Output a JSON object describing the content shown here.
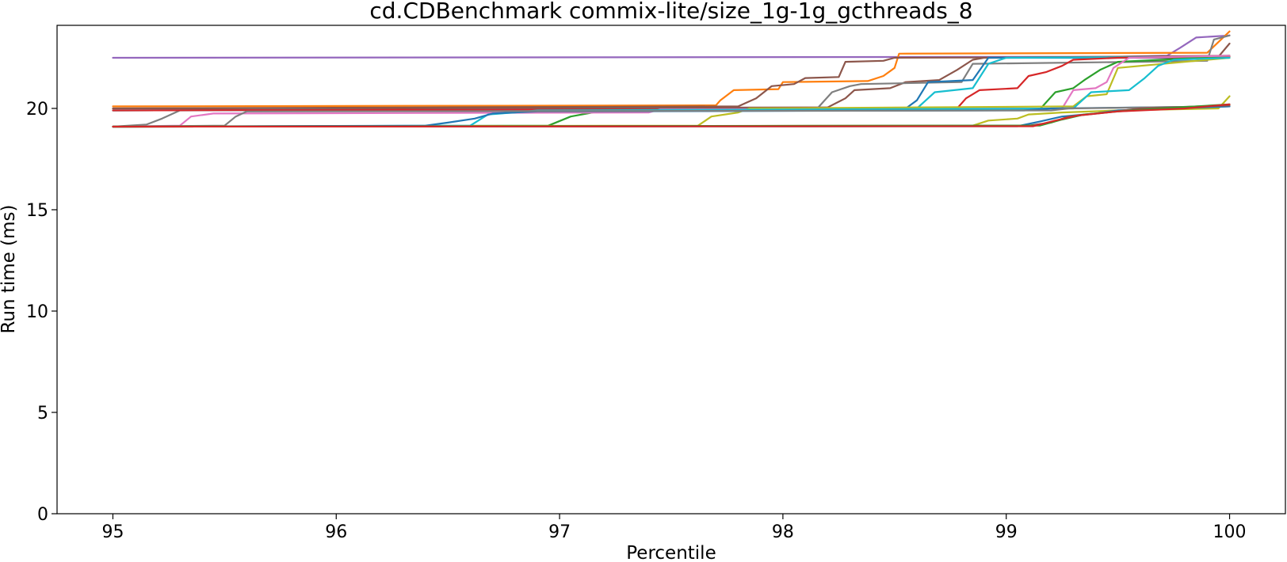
{
  "chart_data": {
    "type": "line",
    "title": "cd.CDBenchmark commix-lite/size_1g-1g_gcthreads_8",
    "xlabel": "Percentile",
    "ylabel": "Run time (ms)",
    "xlim": [
      94.75,
      100.25
    ],
    "ylim": [
      0,
      24.1
    ],
    "x_ticks": [
      95,
      96,
      97,
      98,
      99,
      100
    ],
    "y_ticks": [
      0,
      5,
      10,
      15,
      20
    ],
    "grid": false,
    "legend": "none",
    "series": [
      {
        "color": "#9467bd",
        "points": [
          [
            95,
            22.5
          ],
          [
            99.5,
            22.55
          ],
          [
            99.72,
            22.6
          ],
          [
            99.78,
            23.0
          ],
          [
            99.85,
            23.5
          ],
          [
            100,
            23.6
          ]
        ]
      },
      {
        "color": "#ff7f0e",
        "points": [
          [
            95,
            20.1
          ],
          [
            97.7,
            20.15
          ],
          [
            97.72,
            20.4
          ],
          [
            97.78,
            20.9
          ],
          [
            97.98,
            20.95
          ],
          [
            98.0,
            21.3
          ],
          [
            98.38,
            21.35
          ],
          [
            98.45,
            21.6
          ],
          [
            98.5,
            22.0
          ],
          [
            98.52,
            22.7
          ],
          [
            99.9,
            22.75
          ],
          [
            100,
            23.8
          ]
        ]
      },
      {
        "color": "#8c564b",
        "points": [
          [
            95,
            20.0
          ],
          [
            97.8,
            20.1
          ],
          [
            97.88,
            20.5
          ],
          [
            97.95,
            21.1
          ],
          [
            98.05,
            21.2
          ],
          [
            98.1,
            21.5
          ],
          [
            98.25,
            21.55
          ],
          [
            98.28,
            22.3
          ],
          [
            98.45,
            22.35
          ],
          [
            98.5,
            22.5
          ],
          [
            99.95,
            22.55
          ],
          [
            100,
            23.2
          ]
        ]
      },
      {
        "color": "#8c564b",
        "points": [
          [
            95,
            20.0
          ],
          [
            98.2,
            20.05
          ],
          [
            98.28,
            20.5
          ],
          [
            98.32,
            20.9
          ],
          [
            98.48,
            21.0
          ],
          [
            98.55,
            21.3
          ],
          [
            98.7,
            21.4
          ],
          [
            98.78,
            21.9
          ],
          [
            98.85,
            22.4
          ],
          [
            98.9,
            22.5
          ],
          [
            100,
            22.6
          ]
        ]
      },
      {
        "color": "#7f7f7f",
        "points": [
          [
            95,
            19.1
          ],
          [
            95.15,
            19.2
          ],
          [
            95.22,
            19.5
          ],
          [
            95.3,
            19.9
          ],
          [
            98.15,
            19.95
          ],
          [
            98.22,
            20.8
          ],
          [
            98.3,
            21.1
          ],
          [
            98.35,
            21.2
          ],
          [
            98.8,
            21.3
          ],
          [
            98.85,
            22.2
          ],
          [
            99.6,
            22.3
          ],
          [
            99.9,
            22.35
          ],
          [
            99.93,
            23.4
          ],
          [
            100,
            23.6
          ]
        ]
      },
      {
        "color": "#1f77b4",
        "points": [
          [
            95,
            19.9
          ],
          [
            98.55,
            20.0
          ],
          [
            98.6,
            20.4
          ],
          [
            98.65,
            21.3
          ],
          [
            98.85,
            21.4
          ],
          [
            98.92,
            22.5
          ],
          [
            100,
            22.5
          ]
        ]
      },
      {
        "color": "#17becf",
        "points": [
          [
            95,
            19.9
          ],
          [
            98.6,
            20.0
          ],
          [
            98.68,
            20.8
          ],
          [
            98.85,
            21.0
          ],
          [
            98.92,
            22.2
          ],
          [
            99.0,
            22.5
          ],
          [
            100,
            22.55
          ]
        ]
      },
      {
        "color": "#d62728",
        "points": [
          [
            95,
            19.9
          ],
          [
            98.78,
            20.0
          ],
          [
            98.82,
            20.5
          ],
          [
            98.88,
            20.9
          ],
          [
            99.05,
            21.0
          ],
          [
            99.1,
            21.6
          ],
          [
            99.18,
            21.8
          ],
          [
            99.25,
            22.1
          ],
          [
            99.3,
            22.4
          ],
          [
            99.5,
            22.5
          ],
          [
            100,
            22.55
          ]
        ]
      },
      {
        "color": "#2ca02c",
        "points": [
          [
            95,
            19.1
          ],
          [
            96.95,
            19.15
          ],
          [
            97.05,
            19.6
          ],
          [
            97.15,
            19.8
          ],
          [
            97.2,
            19.9
          ],
          [
            99.15,
            19.95
          ],
          [
            99.22,
            20.8
          ],
          [
            99.3,
            21.0
          ],
          [
            99.35,
            21.4
          ],
          [
            99.42,
            21.9
          ],
          [
            99.5,
            22.3
          ],
          [
            99.7,
            22.4
          ],
          [
            100,
            22.6
          ]
        ]
      },
      {
        "color": "#e377c2",
        "points": [
          [
            95,
            19.1
          ],
          [
            95.3,
            19.15
          ],
          [
            95.35,
            19.6
          ],
          [
            95.45,
            19.75
          ],
          [
            97.4,
            19.8
          ],
          [
            97.45,
            19.95
          ],
          [
            99.25,
            20.0
          ],
          [
            99.3,
            20.9
          ],
          [
            99.4,
            21.0
          ],
          [
            99.45,
            21.3
          ],
          [
            99.48,
            22.0
          ],
          [
            99.55,
            22.5
          ],
          [
            100,
            22.6
          ]
        ]
      },
      {
        "color": "#bcbd22",
        "points": [
          [
            95,
            19.1
          ],
          [
            97.62,
            19.15
          ],
          [
            97.68,
            19.6
          ],
          [
            97.8,
            19.8
          ],
          [
            97.85,
            20.0
          ],
          [
            99.3,
            20.1
          ],
          [
            99.36,
            20.6
          ],
          [
            99.45,
            20.7
          ],
          [
            99.5,
            22.0
          ],
          [
            100,
            22.5
          ]
        ]
      },
      {
        "color": "#17becf",
        "points": [
          [
            95,
            19.1
          ],
          [
            96.6,
            19.15
          ],
          [
            96.68,
            19.7
          ],
          [
            96.8,
            19.8
          ],
          [
            96.9,
            19.9
          ],
          [
            99.3,
            20.0
          ],
          [
            99.38,
            20.8
          ],
          [
            99.55,
            20.9
          ],
          [
            99.62,
            21.5
          ],
          [
            99.68,
            22.1
          ],
          [
            99.75,
            22.4
          ],
          [
            100,
            22.5
          ]
        ]
      },
      {
        "color": "#1f77b4",
        "points": [
          [
            95,
            19.1
          ],
          [
            96.4,
            19.15
          ],
          [
            96.5,
            19.3
          ],
          [
            96.62,
            19.5
          ],
          [
            96.7,
            19.75
          ],
          [
            96.9,
            19.85
          ],
          [
            99.08,
            19.9
          ],
          [
            99.2,
            20.0
          ],
          [
            100,
            20.1
          ]
        ]
      },
      {
        "color": "#7f7f7f",
        "points": [
          [
            95,
            19.1
          ],
          [
            95.5,
            19.15
          ],
          [
            95.55,
            19.6
          ],
          [
            95.6,
            19.85
          ],
          [
            99.2,
            19.9
          ],
          [
            99.28,
            20.0
          ],
          [
            100,
            20.1
          ]
        ]
      },
      {
        "color": "#bcbd22",
        "points": [
          [
            95,
            19.1
          ],
          [
            98.85,
            19.15
          ],
          [
            98.92,
            19.4
          ],
          [
            99.05,
            19.5
          ],
          [
            99.1,
            19.7
          ],
          [
            99.25,
            19.8
          ],
          [
            99.5,
            19.9
          ],
          [
            99.95,
            20.0
          ],
          [
            100,
            20.6
          ]
        ]
      },
      {
        "color": "#1f77b4",
        "points": [
          [
            95,
            19.1
          ],
          [
            99.05,
            19.12
          ],
          [
            99.15,
            19.35
          ],
          [
            99.25,
            19.6
          ],
          [
            99.4,
            19.75
          ],
          [
            99.5,
            19.9
          ],
          [
            100,
            20.1
          ]
        ]
      },
      {
        "color": "#8c564b",
        "points": [
          [
            95,
            19.1
          ],
          [
            99.1,
            19.15
          ],
          [
            99.2,
            19.3
          ],
          [
            99.28,
            19.6
          ],
          [
            99.45,
            19.8
          ],
          [
            99.6,
            20.0
          ],
          [
            100,
            20.15
          ]
        ]
      },
      {
        "color": "#2ca02c",
        "points": [
          [
            95,
            19.1
          ],
          [
            99.15,
            19.15
          ],
          [
            99.25,
            19.45
          ],
          [
            99.35,
            19.7
          ],
          [
            99.5,
            19.85
          ],
          [
            99.7,
            20.0
          ],
          [
            100,
            20.2
          ]
        ]
      },
      {
        "color": "#d62728",
        "points": [
          [
            95,
            19.1
          ],
          [
            99.12,
            19.12
          ],
          [
            99.22,
            19.4
          ],
          [
            99.32,
            19.65
          ],
          [
            99.5,
            19.85
          ],
          [
            99.8,
            20.0
          ],
          [
            100,
            20.2
          ]
        ]
      }
    ]
  }
}
